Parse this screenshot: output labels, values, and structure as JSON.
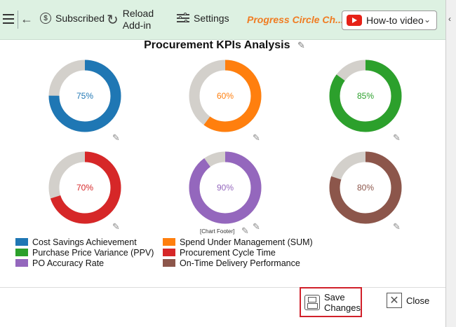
{
  "toolbar": {
    "subscribed_label": "Subscribed",
    "reload_line1": "Reload",
    "reload_line2": "Add-in",
    "settings_label": "Settings",
    "app_title": "Progress Circle Ch...",
    "howto_label": "How-to video"
  },
  "chart": {
    "title": "Procurement KPIs Analysis",
    "footer": "[Chart Footer]"
  },
  "chart_data": {
    "type": "donut",
    "title": "Procurement KPIs Analysis",
    "track_color": "#d3d0cb",
    "series": [
      {
        "name": "Cost Savings Achievement",
        "value": 75,
        "label": "75%",
        "color": "#1f77b4"
      },
      {
        "name": "Spend Under Management (SUM)",
        "value": 60,
        "label": "60%",
        "color": "#ff7f0e"
      },
      {
        "name": "Purchase Price Variance (PPV)",
        "value": 85,
        "label": "85%",
        "color": "#2ca02c"
      },
      {
        "name": "Procurement Cycle Time",
        "value": 70,
        "label": "70%",
        "color": "#d62728"
      },
      {
        "name": "PO Accuracy Rate",
        "value": 90,
        "label": "90%",
        "color": "#9467bd"
      },
      {
        "name": "On-Time Delivery Performance",
        "value": 80,
        "label": "80%",
        "color": "#8c564b"
      }
    ]
  },
  "footer": {
    "save_line1": "Save",
    "save_line2": "Changes",
    "close_label": "Close"
  }
}
